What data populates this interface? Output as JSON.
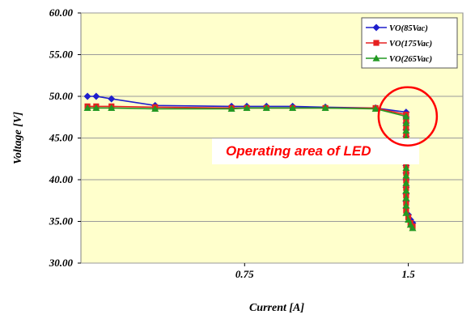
{
  "chart_data": {
    "type": "line",
    "xlabel": "Current [A]",
    "ylabel": "Voltage [V]",
    "ylim": [
      30,
      60
    ],
    "xlim": [
      0,
      1.75
    ],
    "y_ticks": [
      "60.00",
      "55.00",
      "50.00",
      "45.00",
      "40.00",
      "35.00",
      "30.00"
    ],
    "y_tick_values": [
      60,
      55,
      50,
      45,
      40,
      35,
      30
    ],
    "x_ticks": [
      "0.75",
      "1.5"
    ],
    "x_tick_values": [
      0.75,
      1.5
    ],
    "grid": "horizontal",
    "legend_position": "top-right",
    "plot_background": "#ffffcc",
    "series": [
      {
        "name": "VO(85Vac)",
        "color": "#1f1fcc",
        "marker": "diamond",
        "points": [
          [
            0.03,
            50.0
          ],
          [
            0.07,
            50.0
          ],
          [
            0.14,
            49.7
          ],
          [
            0.34,
            48.9
          ],
          [
            0.69,
            48.8
          ],
          [
            0.76,
            48.8
          ],
          [
            0.85,
            48.8
          ],
          [
            0.97,
            48.8
          ],
          [
            1.12,
            48.7
          ],
          [
            1.35,
            48.6
          ],
          [
            1.49,
            48.1
          ],
          [
            1.49,
            47.5
          ],
          [
            1.49,
            46.8
          ],
          [
            1.49,
            46.0
          ],
          [
            1.49,
            45.2
          ],
          [
            1.49,
            44.3
          ],
          [
            1.49,
            43.4
          ],
          [
            1.49,
            42.6
          ],
          [
            1.49,
            41.7
          ],
          [
            1.49,
            40.8
          ],
          [
            1.49,
            40.0
          ],
          [
            1.49,
            39.1
          ],
          [
            1.49,
            38.3
          ],
          [
            1.49,
            37.4
          ],
          [
            1.49,
            36.6
          ],
          [
            1.5,
            35.8
          ],
          [
            1.51,
            35.2
          ],
          [
            1.52,
            34.8
          ]
        ]
      },
      {
        "name": "VO(175Vac)",
        "color": "#e62020",
        "marker": "square",
        "points": [
          [
            0.03,
            48.8
          ],
          [
            0.07,
            48.8
          ],
          [
            0.14,
            48.8
          ],
          [
            0.34,
            48.7
          ],
          [
            0.69,
            48.6
          ],
          [
            0.76,
            48.6
          ],
          [
            0.85,
            48.6
          ],
          [
            0.97,
            48.6
          ],
          [
            1.12,
            48.6
          ],
          [
            1.35,
            48.6
          ],
          [
            1.49,
            47.8
          ],
          [
            1.49,
            47.0
          ],
          [
            1.49,
            46.2
          ],
          [
            1.49,
            45.3
          ],
          [
            1.49,
            44.4
          ],
          [
            1.49,
            43.5
          ],
          [
            1.49,
            42.6
          ],
          [
            1.49,
            41.7
          ],
          [
            1.49,
            40.8
          ],
          [
            1.49,
            39.9
          ],
          [
            1.49,
            39.0
          ],
          [
            1.49,
            38.1
          ],
          [
            1.49,
            37.2
          ],
          [
            1.49,
            36.3
          ],
          [
            1.5,
            35.5
          ],
          [
            1.51,
            34.8
          ],
          [
            1.52,
            34.4
          ]
        ]
      },
      {
        "name": "VO(265Vac)",
        "color": "#229922",
        "marker": "triangle",
        "points": [
          [
            0.03,
            48.6
          ],
          [
            0.07,
            48.6
          ],
          [
            0.14,
            48.6
          ],
          [
            0.34,
            48.5
          ],
          [
            0.69,
            48.5
          ],
          [
            0.76,
            48.6
          ],
          [
            0.85,
            48.6
          ],
          [
            0.97,
            48.6
          ],
          [
            1.12,
            48.6
          ],
          [
            1.35,
            48.5
          ],
          [
            1.49,
            47.6
          ],
          [
            1.49,
            46.8
          ],
          [
            1.49,
            45.9
          ],
          [
            1.49,
            45.0
          ],
          [
            1.49,
            44.1
          ],
          [
            1.49,
            43.2
          ],
          [
            1.49,
            42.3
          ],
          [
            1.49,
            41.4
          ],
          [
            1.49,
            40.5
          ],
          [
            1.49,
            39.6
          ],
          [
            1.49,
            38.7
          ],
          [
            1.49,
            37.8
          ],
          [
            1.49,
            36.9
          ],
          [
            1.49,
            36.0
          ],
          [
            1.5,
            35.2
          ],
          [
            1.51,
            34.6
          ],
          [
            1.52,
            34.2
          ]
        ]
      }
    ],
    "annotation": {
      "text": "Operating area of LED",
      "color": "#ff0000",
      "circle_color": "#ff0000",
      "circle_center": [
        1.49,
        47.6
      ]
    }
  }
}
